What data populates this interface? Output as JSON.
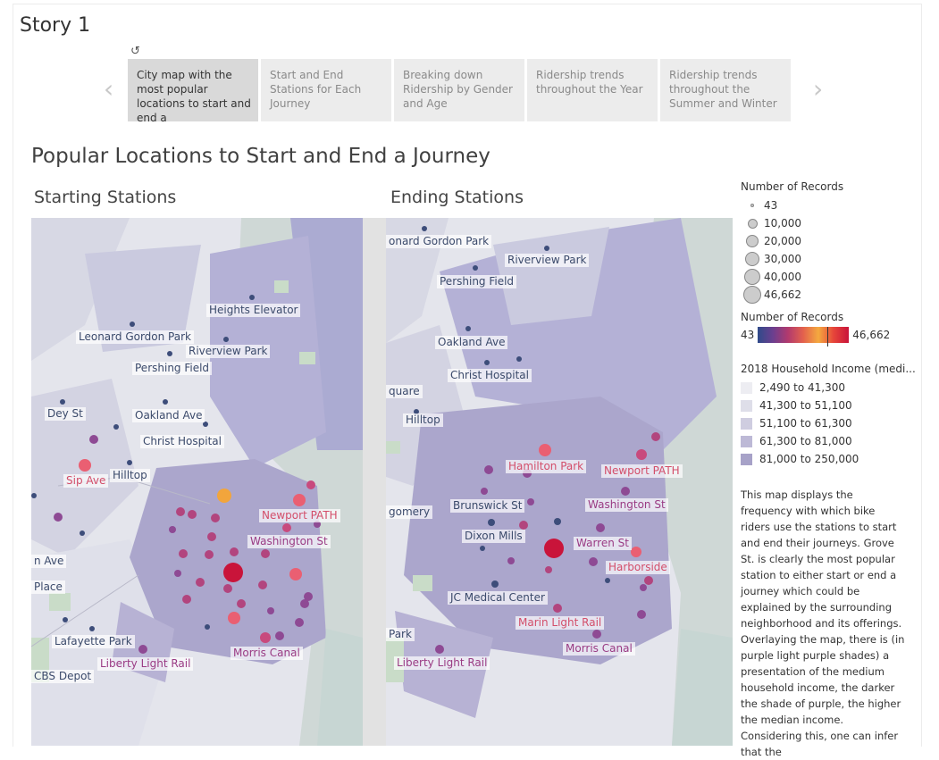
{
  "story": {
    "title": "Story 1",
    "revert_icon": "revert-icon"
  },
  "tabs": [
    {
      "label": "City map with the most popular locations to start and end a",
      "active": true
    },
    {
      "label": "Start and End Stations for Each Journey",
      "active": false
    },
    {
      "label": "Breaking down Ridership by Gender and Age",
      "active": false
    },
    {
      "label": "Ridership trends throughout the Year",
      "active": false
    },
    {
      "label": "Ridership trends throughout the Summer and Winter",
      "active": false
    }
  ],
  "nav": {
    "prev": "‹",
    "next": "›"
  },
  "dashboard": {
    "title": "Popular Locations to Start and End a Journey",
    "left_title": "Starting Stations",
    "right_title": "Ending Stations"
  },
  "left_labels": {
    "heights_elevator": "Heights Elevator",
    "leonard_gordon": "Leonard Gordon Park",
    "riverview": "Riverview Park",
    "pershing": "Pershing Field",
    "dey_st": "Dey St",
    "oakland": "Oakland Ave",
    "christ_hospital": "Christ Hospital",
    "hilltop": "Hilltop",
    "sip_ave": "Sip Ave",
    "newport_path": "Newport PATH",
    "washington": "Washington St",
    "n_ave": "n Ave",
    "place": "Place",
    "lafayette": "Lafayette Park",
    "liberty": "Liberty Light Rail",
    "morris": "Morris Canal",
    "cbs": "CBS Depot"
  },
  "right_labels": {
    "leonard_gordon": "onard Gordon Park",
    "riverview": "Riverview Park",
    "pershing": "Pershing Field",
    "oakland": "Oakland Ave",
    "christ_hospital": "Christ Hospital",
    "quare": "quare",
    "hilltop": "Hilltop",
    "hamilton": "Hamilton Park",
    "newport_path": "Newport PATH",
    "gomery": "gomery",
    "brunswick": "Brunswick St",
    "washington": "Washington St",
    "dixon": "Dixon Mills",
    "warren": "Warren St",
    "harborside": "Harborside",
    "jc_medical": "JC Medical Center",
    "marin": "Marin Light Rail",
    "park": "Park",
    "morris": "Morris Canal",
    "liberty": "Liberty Light Rail"
  },
  "legend": {
    "size_title": "Number of Records",
    "sizes": [
      "43",
      "10,000",
      "20,000",
      "30,000",
      "40,000",
      "46,662"
    ],
    "color_title": "Number of Records",
    "color_min": "43",
    "color_max": "46,662",
    "income_title": "2018 Household Income (medi...",
    "income": [
      {
        "label": "2,490 to 41,300",
        "color": "#ededf2"
      },
      {
        "label": "41,300 to 51,100",
        "color": "#dedee9"
      },
      {
        "label": "51,100 to 61,300",
        "color": "#cfcde0"
      },
      {
        "label": "61,300 to 81,000",
        "color": "#bdb9d6"
      },
      {
        "label": "81,000 to 250,000",
        "color": "#a7a2c8"
      }
    ]
  },
  "description": "This map displays the frequency with which bike riders use the stations to start and end their journeys. Grove St. is clearly the most popular station to either start or end a journey which could be explained by the surrounding neighborhood and its offerings. Overlaying the map, there is (in purple light purple shades) a presentation of the medium household income, the darker the shade of purple, the higher the median income. Considering this, one can infer that the"
}
